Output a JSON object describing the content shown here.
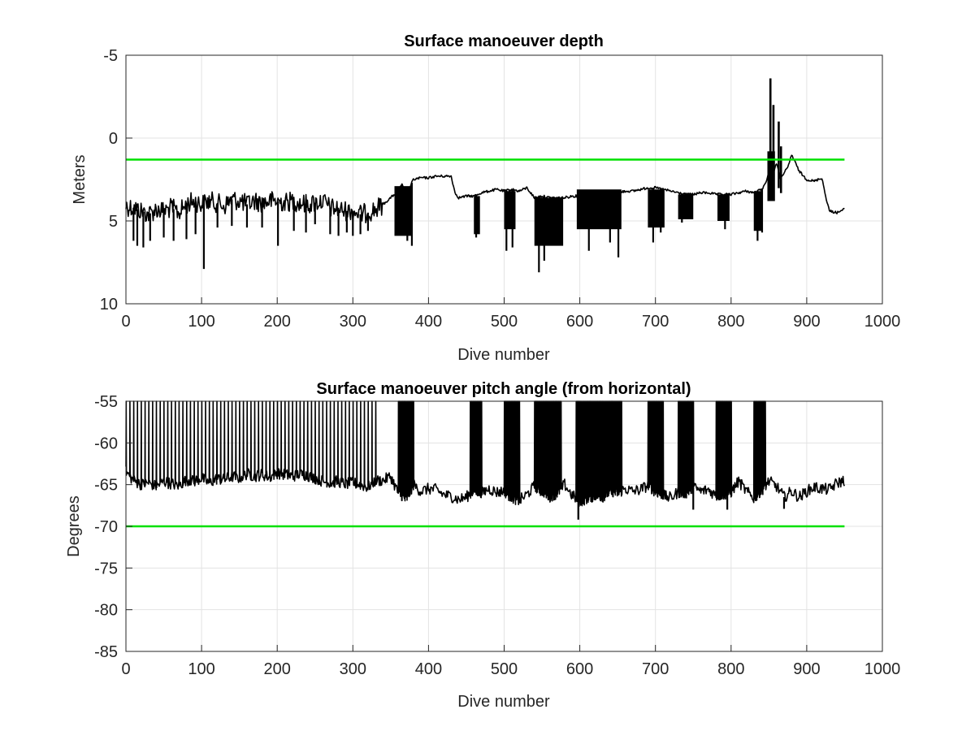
{
  "chart_data": [
    {
      "type": "line",
      "title": "Surface manoeuver depth",
      "xlabel": "Dive number",
      "ylabel": "Meters",
      "xlim": [
        0,
        1000
      ],
      "ylim": [
        -5,
        10
      ],
      "y_reversed": true,
      "grid": true,
      "x_ticks": [
        "0",
        "100",
        "200",
        "300",
        "400",
        "500",
        "600",
        "700",
        "800",
        "900",
        "1000"
      ],
      "y_ticks": [
        "-5",
        "0",
        "5",
        "10"
      ],
      "series": [
        {
          "color": "#000000",
          "style": "spiky",
          "x": [
            0,
            10,
            20,
            30,
            40,
            50,
            60,
            70,
            80,
            90,
            100,
            110,
            120,
            130,
            140,
            150,
            160,
            170,
            180,
            190,
            200,
            210,
            220,
            230,
            240,
            250,
            260,
            270,
            280,
            290,
            300,
            310,
            320,
            330,
            340,
            350,
            360,
            365,
            370,
            380,
            390,
            400,
            410,
            420,
            430,
            435,
            440,
            450,
            460,
            470,
            480,
            490,
            500,
            510,
            520,
            530,
            540,
            550,
            560,
            570,
            580,
            590,
            600,
            610,
            620,
            630,
            640,
            650,
            660,
            670,
            680,
            690,
            700,
            710,
            720,
            730,
            740,
            750,
            760,
            770,
            780,
            790,
            800,
            810,
            820,
            830,
            840,
            845,
            850,
            855,
            860,
            865,
            870,
            875,
            880,
            890,
            900,
            910,
            920,
            925,
            930,
            940,
            945,
            950
          ],
          "base": [
            4.1,
            4.2,
            4.4,
            4.6,
            4.3,
            4.4,
            4.2,
            4.5,
            4.0,
            3.8,
            4.0,
            3.8,
            3.9,
            4.1,
            3.7,
            3.8,
            4.0,
            3.8,
            3.9,
            3.8,
            3.8,
            3.9,
            3.8,
            3.9,
            4.0,
            3.9,
            3.8,
            4.2,
            4.3,
            4.4,
            4.4,
            4.6,
            4.5,
            4.3,
            4.0,
            3.6,
            3.2,
            2.8,
            3.5,
            2.5,
            2.4,
            2.4,
            2.3,
            2.3,
            2.3,
            3.3,
            3.6,
            3.5,
            3.5,
            3.3,
            3.2,
            3.1,
            3.2,
            3.1,
            3.2,
            3.0,
            3.6,
            3.5,
            3.6,
            3.6,
            3.6,
            3.5,
            3.5,
            3.4,
            3.4,
            3.4,
            3.3,
            3.3,
            3.2,
            3.2,
            3.1,
            3.0,
            3.0,
            3.1,
            3.2,
            3.3,
            3.4,
            3.4,
            3.3,
            3.3,
            3.4,
            3.4,
            3.4,
            3.3,
            3.2,
            3.3,
            3.1,
            2.8,
            2.0,
            2.2,
            1.5,
            2.4,
            2.1,
            1.8,
            1.0,
            2.0,
            2.5,
            2.6,
            2.4,
            3.5,
            4.4,
            4.5,
            4.4,
            4.3
          ],
          "dips": [
            {
              "x": 10,
              "y": 6.2
            },
            {
              "x": 15,
              "y": 6.5
            },
            {
              "x": 23,
              "y": 6.6
            },
            {
              "x": 32,
              "y": 6.2
            },
            {
              "x": 50,
              "y": 6.0
            },
            {
              "x": 63,
              "y": 6.2
            },
            {
              "x": 80,
              "y": 6.1
            },
            {
              "x": 92,
              "y": 5.8
            },
            {
              "x": 103,
              "y": 7.9
            },
            {
              "x": 121,
              "y": 5.4
            },
            {
              "x": 140,
              "y": 5.3
            },
            {
              "x": 160,
              "y": 5.4
            },
            {
              "x": 180,
              "y": 5.4
            },
            {
              "x": 201,
              "y": 6.5
            },
            {
              "x": 222,
              "y": 5.6
            },
            {
              "x": 238,
              "y": 5.7
            },
            {
              "x": 250,
              "y": 5.2
            },
            {
              "x": 270,
              "y": 5.8
            },
            {
              "x": 281,
              "y": 5.9
            },
            {
              "x": 292,
              "y": 5.7
            },
            {
              "x": 300,
              "y": 5.9
            },
            {
              "x": 310,
              "y": 5.8
            },
            {
              "x": 320,
              "y": 5.6
            },
            {
              "x": 365,
              "y": 5.8
            },
            {
              "x": 372,
              "y": 6.2
            },
            {
              "x": 378,
              "y": 6.5
            },
            {
              "x": 463,
              "y": 6.0
            },
            {
              "x": 503,
              "y": 6.8
            },
            {
              "x": 511,
              "y": 6.6
            },
            {
              "x": 546,
              "y": 8.1
            },
            {
              "x": 553,
              "y": 7.4
            },
            {
              "x": 570,
              "y": 6.2
            },
            {
              "x": 612,
              "y": 6.8
            },
            {
              "x": 640,
              "y": 6.3
            },
            {
              "x": 651,
              "y": 7.2
            },
            {
              "x": 697,
              "y": 6.3
            },
            {
              "x": 707,
              "y": 5.7
            },
            {
              "x": 735,
              "y": 5.1
            },
            {
              "x": 792,
              "y": 5.5
            },
            {
              "x": 835,
              "y": 6.2
            },
            {
              "x": 841,
              "y": 5.7
            }
          ],
          "peaks": [
            {
              "x": 852,
              "y": -3.6
            },
            {
              "x": 856,
              "y": -2.0
            },
            {
              "x": 863,
              "y": -1.0
            },
            {
              "x": 866,
              "y": 0.5
            }
          ],
          "fills": [
            {
              "from": 355,
              "to": 378,
              "lo": 2.9,
              "hi": 5.9
            },
            {
              "from": 460,
              "to": 468,
              "lo": 3.5,
              "hi": 5.8
            },
            {
              "from": 500,
              "to": 515,
              "lo": 3.2,
              "hi": 5.5
            },
            {
              "from": 540,
              "to": 578,
              "lo": 3.6,
              "hi": 6.5
            },
            {
              "from": 596,
              "to": 655,
              "lo": 3.1,
              "hi": 5.5
            },
            {
              "from": 690,
              "to": 712,
              "lo": 3.1,
              "hi": 5.4
            },
            {
              "from": 730,
              "to": 750,
              "lo": 3.4,
              "hi": 4.9
            },
            {
              "from": 782,
              "to": 798,
              "lo": 3.4,
              "hi": 5.0
            },
            {
              "from": 830,
              "to": 842,
              "lo": 3.2,
              "hi": 5.6
            },
            {
              "from": 848,
              "to": 858,
              "lo": 0.8,
              "hi": 3.8
            }
          ]
        },
        {
          "color": "#00e000",
          "style": "line",
          "x": [
            0,
            950
          ],
          "y": [
            1.3,
            1.3
          ]
        }
      ]
    },
    {
      "type": "line",
      "title": "Surface manoeuver pitch angle (from horizontal)",
      "xlabel": "Dive number",
      "ylabel": "Degrees",
      "xlim": [
        0,
        1000
      ],
      "ylim": [
        -85,
        -55
      ],
      "grid": true,
      "x_ticks": [
        "0",
        "100",
        "200",
        "300",
        "400",
        "500",
        "600",
        "700",
        "800",
        "900",
        "1000"
      ],
      "y_ticks": [
        "-55",
        "-60",
        "-65",
        "-70",
        "-75",
        "-80",
        "-85"
      ],
      "series": [
        {
          "color": "#000000",
          "style": "spiky",
          "x": [
            0,
            10,
            20,
            30,
            40,
            50,
            60,
            70,
            80,
            90,
            100,
            110,
            120,
            130,
            140,
            150,
            160,
            170,
            180,
            190,
            200,
            210,
            220,
            230,
            240,
            250,
            260,
            270,
            280,
            290,
            300,
            310,
            320,
            330,
            340,
            350,
            360,
            370,
            380,
            390,
            400,
            410,
            420,
            430,
            440,
            450,
            460,
            470,
            480,
            490,
            500,
            510,
            520,
            530,
            540,
            550,
            560,
            570,
            580,
            590,
            600,
            610,
            620,
            630,
            640,
            650,
            660,
            670,
            680,
            690,
            700,
            710,
            720,
            730,
            740,
            750,
            760,
            770,
            780,
            790,
            800,
            810,
            820,
            830,
            840,
            850,
            860,
            870,
            880,
            890,
            900,
            910,
            920,
            930,
            940,
            950
          ],
          "base": [
            -63.5,
            -64.5,
            -65.0,
            -64.8,
            -65.2,
            -64.6,
            -64.9,
            -65.1,
            -64.4,
            -64.6,
            -64.2,
            -64.8,
            -64.3,
            -64.4,
            -64.0,
            -64.2,
            -63.7,
            -64.0,
            -63.8,
            -64.1,
            -63.6,
            -63.8,
            -64.0,
            -63.7,
            -63.9,
            -64.2,
            -64.6,
            -64.8,
            -64.6,
            -64.9,
            -64.8,
            -65.0,
            -65.3,
            -64.5,
            -64.5,
            -64.0,
            -66.0,
            -66.8,
            -65.0,
            -65.8,
            -65.5,
            -65.6,
            -66.2,
            -66.4,
            -66.8,
            -66.5,
            -65.7,
            -66.0,
            -65.5,
            -65.9,
            -65.8,
            -66.5,
            -66.9,
            -66.2,
            -65.2,
            -65.8,
            -66.5,
            -66.0,
            -65.0,
            -66.3,
            -67.0,
            -66.6,
            -66.3,
            -66.5,
            -65.8,
            -66.0,
            -65.5,
            -65.8,
            -65.6,
            -65.1,
            -65.8,
            -66.3,
            -66.6,
            -65.9,
            -66.0,
            -65.3,
            -65.8,
            -65.6,
            -66.3,
            -66.2,
            -65.9,
            -64.6,
            -65.8,
            -66.6,
            -65.7,
            -64.6,
            -65.2,
            -66.5,
            -65.8,
            -66.5,
            -65.8,
            -65.3,
            -65.5,
            -65.6,
            -64.8,
            -64.5
          ],
          "spike_top": -55,
          "spike_ranges": [
            [
              0,
              330
            ],
            [
              360,
              380
            ],
            [
              455,
              470
            ],
            [
              500,
              520
            ],
            [
              540,
              575
            ],
            [
              595,
              655
            ],
            [
              690,
              710
            ],
            [
              730,
              750
            ],
            [
              780,
              800
            ],
            [
              830,
              845
            ]
          ],
          "dips": [
            {
              "x": 598,
              "y": -69.2
            },
            {
              "x": 750,
              "y": -68.0
            },
            {
              "x": 795,
              "y": -68.0
            },
            {
              "x": 870,
              "y": -67.9
            },
            {
              "x": 893,
              "y": -66.8
            }
          ]
        },
        {
          "color": "#00e000",
          "style": "line",
          "x": [
            0,
            950
          ],
          "y": [
            -70,
            -70
          ]
        }
      ]
    }
  ]
}
